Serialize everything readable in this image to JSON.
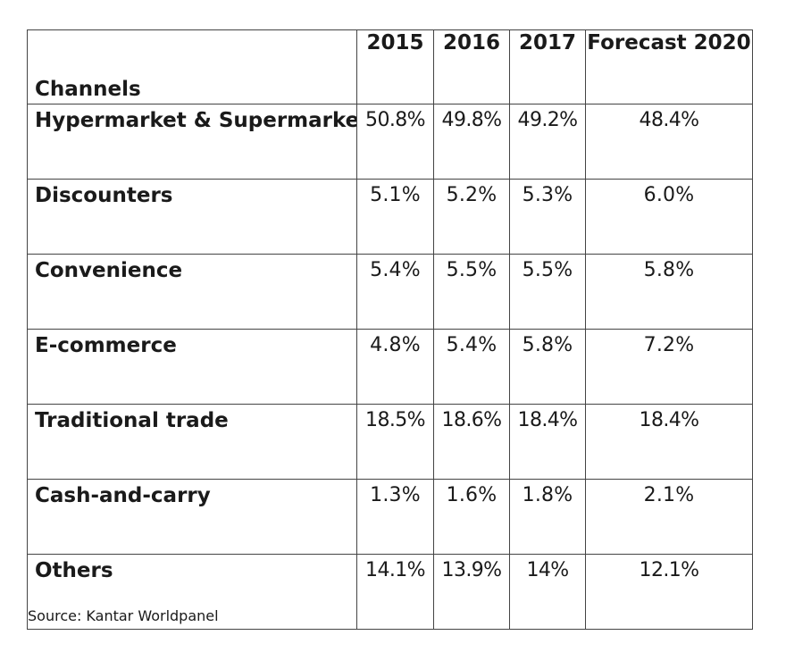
{
  "table": {
    "header": {
      "channels_label": "Channels",
      "years": [
        "2015",
        "2016",
        "2017",
        "Forecast 2020"
      ]
    },
    "rows": [
      {
        "channel": "Hypermarket & Supermarket",
        "values": [
          "50.8%",
          "49.8%",
          "49.2%",
          "48.4%"
        ]
      },
      {
        "channel": "Discounters",
        "values": [
          "5.1%",
          "5.2%",
          "5.3%",
          "6.0%"
        ]
      },
      {
        "channel": "Convenience",
        "values": [
          "5.4%",
          "5.5%",
          "5.5%",
          "5.8%"
        ]
      },
      {
        "channel": "E-commerce",
        "values": [
          "4.8%",
          "5.4%",
          "5.8%",
          "7.2%"
        ]
      },
      {
        "channel": "Traditional trade",
        "values": [
          "18.5%",
          "18.6%",
          "18.4%",
          "18.4%"
        ]
      },
      {
        "channel": "Cash-and-carry",
        "values": [
          "1.3%",
          "1.6%",
          "1.8%",
          "2.1%"
        ]
      },
      {
        "channel": "Others",
        "values": [
          "14.1%",
          "13.9%",
          "14%",
          "12.1%"
        ]
      }
    ]
  },
  "source": "Source: Kantar Worldpanel"
}
